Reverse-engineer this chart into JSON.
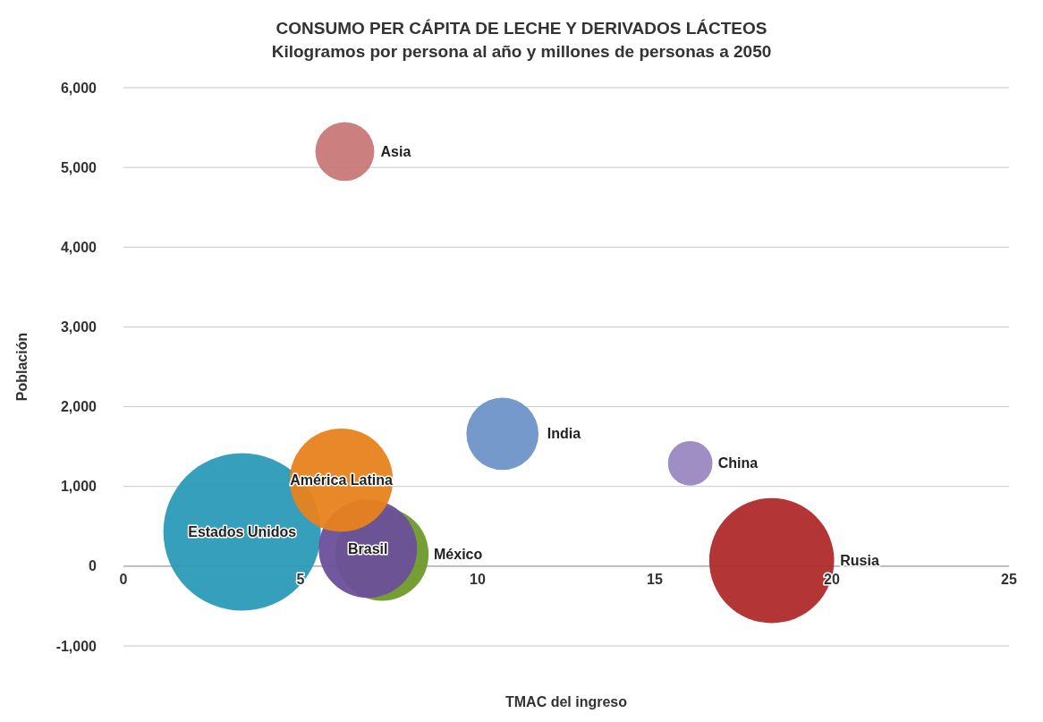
{
  "chart_data": {
    "type": "bubble",
    "title": "CONSUMO PER CÁPITA DE LECHE Y DERIVADOS LÁCTEOS",
    "subtitle": "Kilogramos por persona al año y millones de personas a 2050",
    "xlabel": "TMAC del ingreso",
    "ylabel": "Población",
    "xlim": [
      0,
      25
    ],
    "xticks": [
      0,
      5,
      10,
      15,
      20,
      25
    ],
    "ylim": [
      -1000,
      6000
    ],
    "yticks": [
      {
        "value": -1000,
        "label": "-1,000"
      },
      {
        "value": 0,
        "label": "0"
      },
      {
        "value": 1000,
        "label": "1,000"
      },
      {
        "value": 2000,
        "label": "2,000"
      },
      {
        "value": 3000,
        "label": "3,000"
      },
      {
        "value": 4000,
        "label": "4,000"
      },
      {
        "value": 5000,
        "label": "5,000"
      },
      {
        "value": 6000,
        "label": "6,000"
      }
    ],
    "grid": "y",
    "series": [
      {
        "name": "Estados Unidos",
        "color": "#2a9ab8",
        "x": [
          3.35
        ],
        "values": [
          430
        ],
        "sizes": [
          1
        ]
      },
      {
        "name": "México",
        "color": "#6e9a2a",
        "x": [
          7.3
        ],
        "values": [
          150
        ],
        "sizes": [
          0.35
        ]
      },
      {
        "name": "Brasil",
        "color": "#6a4f9a",
        "x": [
          6.9
        ],
        "values": [
          220
        ],
        "sizes": [
          0.39
        ]
      },
      {
        "name": "América Latina",
        "color": "#e8821e",
        "x": [
          6.15
        ],
        "values": [
          1080
        ],
        "sizes": [
          0.43
        ]
      },
      {
        "name": "Asia",
        "color": "#c87878",
        "x": [
          6.25
        ],
        "values": [
          5200
        ],
        "sizes": [
          0.14
        ]
      },
      {
        "name": "India",
        "color": "#6f94c8",
        "x": [
          10.7
        ],
        "values": [
          1660
        ],
        "sizes": [
          0.21
        ]
      },
      {
        "name": "China",
        "color": "#9a88c0",
        "x": [
          16
        ],
        "values": [
          1290
        ],
        "sizes": [
          0.08
        ]
      },
      {
        "name": "Rusia",
        "color": "#b02a2a",
        "x": [
          18.3
        ],
        "values": [
          70
        ],
        "sizes": [
          0.63
        ]
      }
    ]
  }
}
